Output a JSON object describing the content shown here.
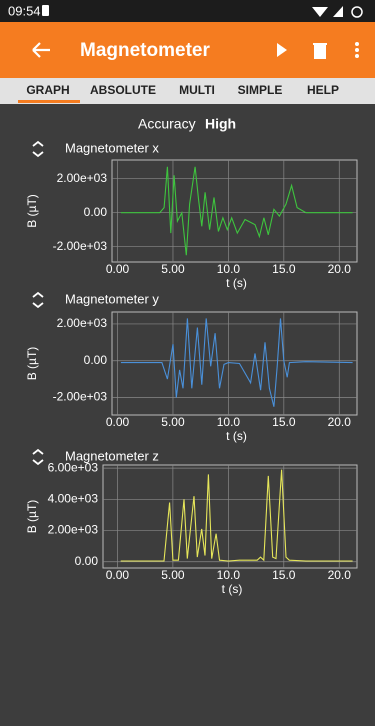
{
  "status_bar": {
    "time": "09:54"
  },
  "app_bar": {
    "title": "Magnetometer"
  },
  "tabs": [
    "GRAPH",
    "ABSOLUTE",
    "MULTI",
    "SIMPLE",
    "HELP"
  ],
  "accuracy": {
    "label": "Accuracy",
    "value": "High"
  },
  "chart_data": [
    {
      "type": "line",
      "title": "Magnetometer x",
      "x_label": "t (s)",
      "y_label": "B (µT)",
      "color": "#3ec43e",
      "x": [
        0.3,
        3.8,
        4.2,
        4.5,
        4.8,
        5.1,
        5.4,
        5.8,
        6.2,
        6.5,
        7.0,
        7.3,
        7.6,
        7.9,
        8.3,
        8.7,
        9.1,
        9.5,
        9.9,
        10.3,
        10.8,
        11.5,
        12.4,
        12.8,
        13.2,
        13.6,
        14.1,
        14.6,
        15.2,
        15.7,
        16.2,
        17.0,
        19.0,
        21.2
      ],
      "values": [
        0,
        0,
        300,
        2700,
        -1200,
        2200,
        -500,
        0,
        -2500,
        500,
        2700,
        800,
        -800,
        1200,
        -1000,
        900,
        -1100,
        -300,
        -1000,
        -300,
        -1200,
        -400,
        -700,
        -1400,
        -300,
        -1300,
        200,
        -200,
        500,
        1600,
        300,
        0,
        0,
        0
      ],
      "xlim": [
        -0.5,
        21.6
      ],
      "ylim": [
        -2900,
        3100
      ],
      "xticks": [
        {
          "value": 0,
          "label": "0.00"
        },
        {
          "value": 5,
          "label": "5.00"
        },
        {
          "value": 10,
          "label": "10.0"
        },
        {
          "value": 15,
          "label": "15.0"
        },
        {
          "value": 20,
          "label": "20.0"
        }
      ],
      "yticks": [
        {
          "value": -2000,
          "label": "-2.00e+03"
        },
        {
          "value": 0,
          "label": "0.00"
        },
        {
          "value": 2000,
          "label": "2.00e+03"
        }
      ],
      "grid": true
    },
    {
      "type": "line",
      "title": "Magnetometer y",
      "x_label": "t (s)",
      "y_label": "B (µT)",
      "color": "#4a90d9",
      "x": [
        0.3,
        4.0,
        4.5,
        5.0,
        5.3,
        5.6,
        5.9,
        6.3,
        6.7,
        7.2,
        7.6,
        8.0,
        8.4,
        8.8,
        9.2,
        9.6,
        10.0,
        11.0,
        12.0,
        12.4,
        12.9,
        13.3,
        13.7,
        14.1,
        14.4,
        14.7,
        15.0,
        15.3,
        15.5,
        17.0,
        21.2
      ],
      "values": [
        -100,
        -100,
        -1000,
        900,
        -2000,
        -500,
        -1500,
        2300,
        -1500,
        1800,
        -1300,
        2300,
        -300,
        1500,
        -1500,
        -200,
        -100,
        -150,
        -1200,
        400,
        -1600,
        1000,
        -1500,
        -2500,
        -300,
        2300,
        0,
        -900,
        -100,
        -50,
        -100
      ],
      "xlim": [
        -0.5,
        21.6
      ],
      "ylim": [
        -2950,
        2650
      ],
      "xticks": [
        {
          "value": 0,
          "label": "0.00"
        },
        {
          "value": 5,
          "label": "5.00"
        },
        {
          "value": 10,
          "label": "10.0"
        },
        {
          "value": 15,
          "label": "15.0"
        },
        {
          "value": 20,
          "label": "20.0"
        }
      ],
      "yticks": [
        {
          "value": -2000,
          "label": "-2.00e+03"
        },
        {
          "value": 0,
          "label": "0.00"
        },
        {
          "value": 2000,
          "label": "2.00e+03"
        }
      ],
      "grid": true
    },
    {
      "type": "line",
      "title": "Magnetometer z",
      "x_label": "t (s)",
      "y_label": "B (µT)",
      "color": "#e6e65a",
      "x": [
        0.3,
        4.2,
        4.7,
        5.0,
        5.5,
        6.0,
        6.3,
        6.9,
        7.2,
        7.6,
        7.9,
        8.2,
        8.5,
        8.9,
        9.2,
        10.0,
        11.0,
        12.6,
        12.9,
        13.2,
        13.6,
        14.0,
        14.3,
        14.8,
        15.2,
        15.5,
        17.0,
        21.2
      ],
      "values": [
        50,
        50,
        3800,
        100,
        100,
        4000,
        200,
        4200,
        300,
        2100,
        400,
        5600,
        200,
        1800,
        100,
        50,
        100,
        100,
        300,
        100,
        5500,
        300,
        200,
        5900,
        300,
        100,
        50,
        50
      ],
      "xlim": [
        -1.3,
        21.6
      ],
      "ylim": [
        -400,
        6200
      ],
      "xticks": [
        {
          "value": 0,
          "label": "0.00"
        },
        {
          "value": 5,
          "label": "5.00"
        },
        {
          "value": 10,
          "label": "10.0"
        },
        {
          "value": 15,
          "label": "15.0"
        },
        {
          "value": 20,
          "label": "20.0"
        }
      ],
      "yticks": [
        {
          "value": 0,
          "label": "0.00"
        },
        {
          "value": 2000,
          "label": "2.00e+03"
        },
        {
          "value": 4000,
          "label": "4.00e+03"
        },
        {
          "value": 6000,
          "label": "6.00e+03"
        }
      ],
      "grid": true
    }
  ]
}
